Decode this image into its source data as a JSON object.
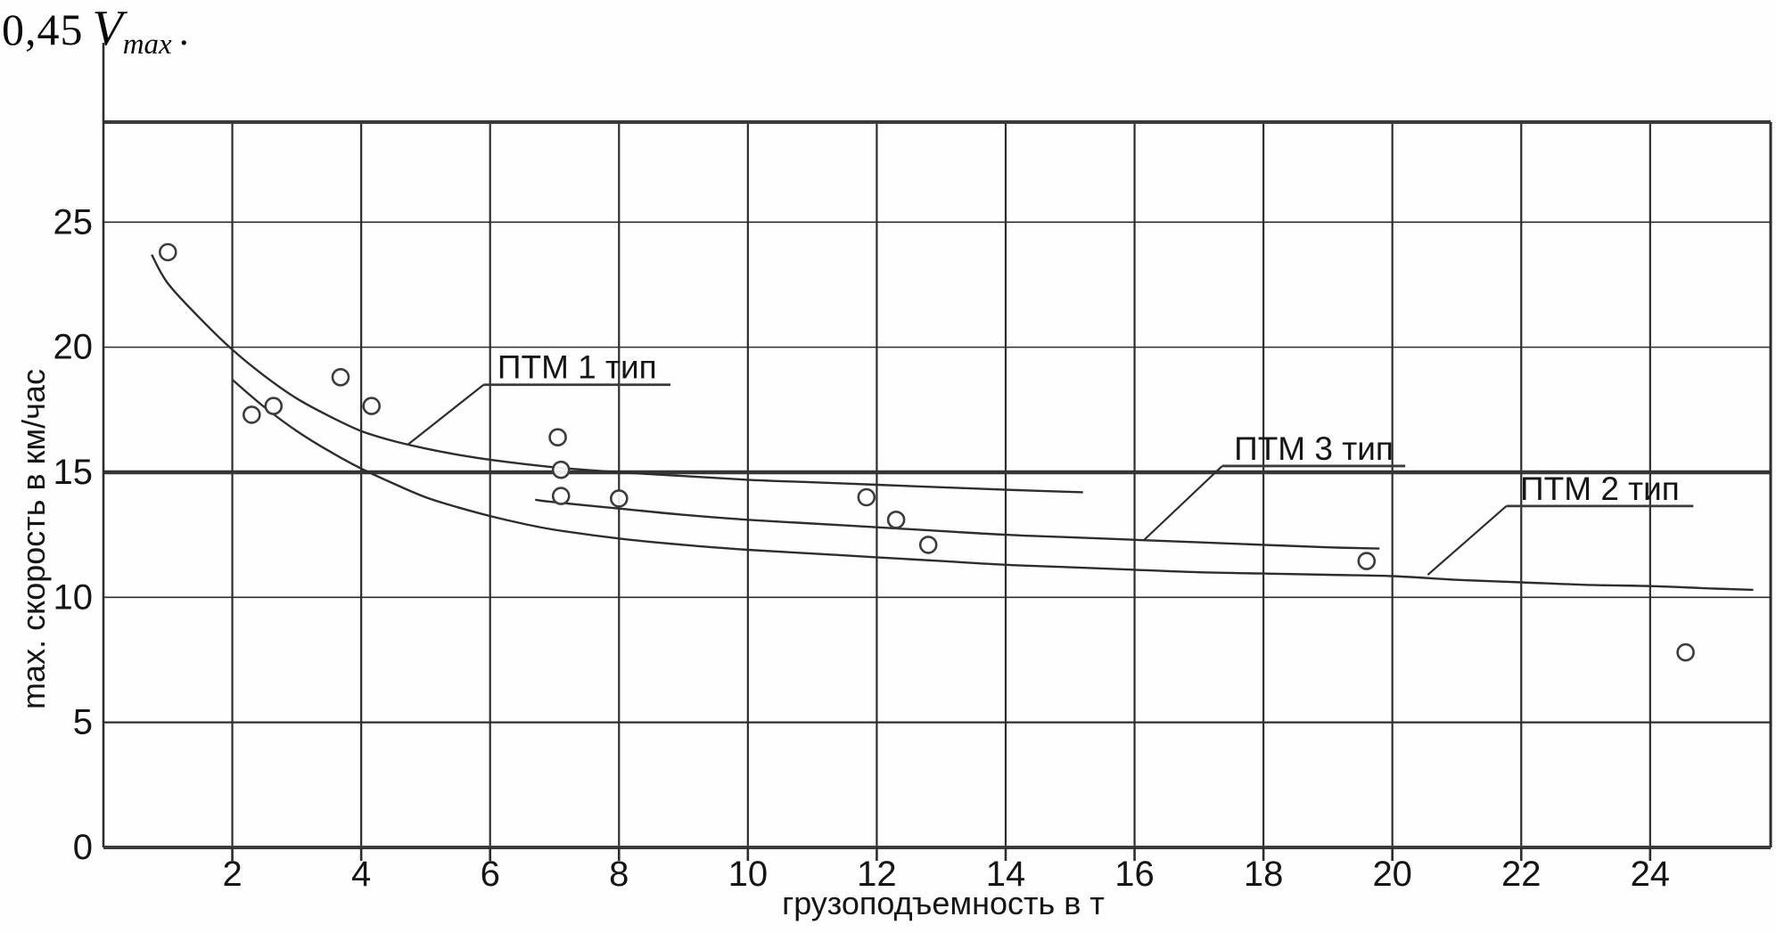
{
  "heading": {
    "coefficient": "0,45",
    "symbol": "V",
    "subscript": "max",
    "suffix": "."
  },
  "chart_data": {
    "type": "line",
    "title": "",
    "xlabel": "грузоподъемность в т",
    "ylabel": "max. скорость в км/час",
    "xlim": [
      0,
      25.87
    ],
    "ylim": [
      0,
      29
    ],
    "grid": true,
    "x_ticks": [
      2,
      4,
      6,
      8,
      10,
      12,
      14,
      16,
      18,
      20,
      22,
      24
    ],
    "y_ticks": [
      0,
      5,
      10,
      15,
      20,
      25
    ],
    "x_gridlines": [
      2,
      4,
      6,
      8,
      10,
      12,
      14,
      16,
      18,
      20,
      22,
      24
    ],
    "y_gridlines": [
      5,
      10,
      15,
      20,
      25
    ],
    "emphasized_y_gridline": 15,
    "line_color": "#2d2d2d",
    "series": [
      {
        "name": "ПТМ 1 тип",
        "points": [
          [
            0.75,
            23.7
          ],
          [
            1.0,
            22.55
          ],
          [
            1.5,
            21.15
          ],
          [
            2.0,
            19.9
          ],
          [
            2.5,
            18.85
          ],
          [
            3.0,
            17.95
          ],
          [
            3.5,
            17.25
          ],
          [
            4.0,
            16.65
          ],
          [
            4.5,
            16.25
          ],
          [
            5.0,
            15.95
          ],
          [
            5.5,
            15.7
          ],
          [
            6.0,
            15.5
          ],
          [
            7.0,
            15.2
          ],
          [
            8.0,
            15.0
          ],
          [
            9.0,
            14.85
          ],
          [
            10.0,
            14.7
          ],
          [
            11.0,
            14.6
          ],
          [
            12.0,
            14.5
          ],
          [
            13.0,
            14.4
          ],
          [
            14.0,
            14.3
          ],
          [
            15.2,
            14.2
          ]
        ]
      },
      {
        "name": "ПТМ 2 тип",
        "points": [
          [
            2.0,
            18.7
          ],
          [
            2.5,
            17.6
          ],
          [
            3.0,
            16.65
          ],
          [
            3.5,
            15.85
          ],
          [
            4.0,
            15.15
          ],
          [
            4.5,
            14.55
          ],
          [
            5.0,
            14.0
          ],
          [
            5.5,
            13.6
          ],
          [
            6.0,
            13.25
          ],
          [
            6.5,
            12.95
          ],
          [
            7.0,
            12.7
          ],
          [
            8.0,
            12.35
          ],
          [
            9.0,
            12.1
          ],
          [
            10.0,
            11.9
          ],
          [
            11.0,
            11.75
          ],
          [
            12.0,
            11.6
          ],
          [
            13.0,
            11.45
          ],
          [
            14.0,
            11.3
          ],
          [
            15.0,
            11.2
          ],
          [
            16.0,
            11.1
          ],
          [
            17.0,
            11.0
          ],
          [
            18.0,
            10.95
          ],
          [
            19.0,
            10.9
          ],
          [
            20.0,
            10.85
          ],
          [
            21.0,
            10.7
          ],
          [
            22.0,
            10.6
          ],
          [
            23.0,
            10.5
          ],
          [
            24.0,
            10.45
          ],
          [
            25.0,
            10.35
          ],
          [
            25.6,
            10.3
          ]
        ]
      },
      {
        "name": "ПТМ 3 тип",
        "points": [
          [
            6.7,
            13.9
          ],
          [
            7.0,
            13.8
          ],
          [
            8.0,
            13.55
          ],
          [
            9.0,
            13.3
          ],
          [
            10.0,
            13.1
          ],
          [
            11.0,
            12.95
          ],
          [
            12.0,
            12.8
          ],
          [
            13.0,
            12.65
          ],
          [
            14.0,
            12.5
          ],
          [
            15.0,
            12.4
          ],
          [
            16.0,
            12.3
          ],
          [
            17.0,
            12.2
          ],
          [
            18.0,
            12.1
          ],
          [
            19.0,
            12.0
          ],
          [
            19.8,
            11.95
          ]
        ]
      }
    ],
    "scatter": {
      "name": "measured-points",
      "points": [
        [
          1.0,
          23.8
        ],
        [
          2.3,
          17.3
        ],
        [
          2.64,
          17.65
        ],
        [
          3.68,
          18.8
        ],
        [
          4.16,
          17.65
        ],
        [
          7.05,
          16.4
        ],
        [
          7.1,
          15.1
        ],
        [
          7.1,
          14.05
        ],
        [
          8.0,
          13.95
        ],
        [
          11.84,
          14.0
        ],
        [
          12.3,
          13.1
        ],
        [
          12.8,
          12.1
        ],
        [
          19.6,
          11.45
        ],
        [
          24.55,
          7.8
        ]
      ]
    },
    "annotations": [
      {
        "label": "ПТМ 1 тип",
        "leader": [
          [
            4.72,
            16.1
          ],
          [
            5.9,
            18.5
          ]
        ],
        "underline": [
          [
            5.9,
            18.5
          ],
          [
            8.8,
            18.5
          ]
        ],
        "text_x": 7.35
      },
      {
        "label": "ПТМ 3 тип",
        "leader": [
          [
            16.15,
            12.3
          ],
          [
            17.36,
            15.25
          ]
        ],
        "underline": [
          [
            17.36,
            15.25
          ],
          [
            20.2,
            15.25
          ]
        ],
        "text_x": 18.78
      },
      {
        "label": "ПТМ 2 тип",
        "leader": [
          [
            20.55,
            10.9
          ],
          [
            21.77,
            13.65
          ]
        ],
        "underline": [
          [
            21.77,
            13.65
          ],
          [
            24.67,
            13.65
          ]
        ],
        "text_x": 23.22
      }
    ]
  }
}
